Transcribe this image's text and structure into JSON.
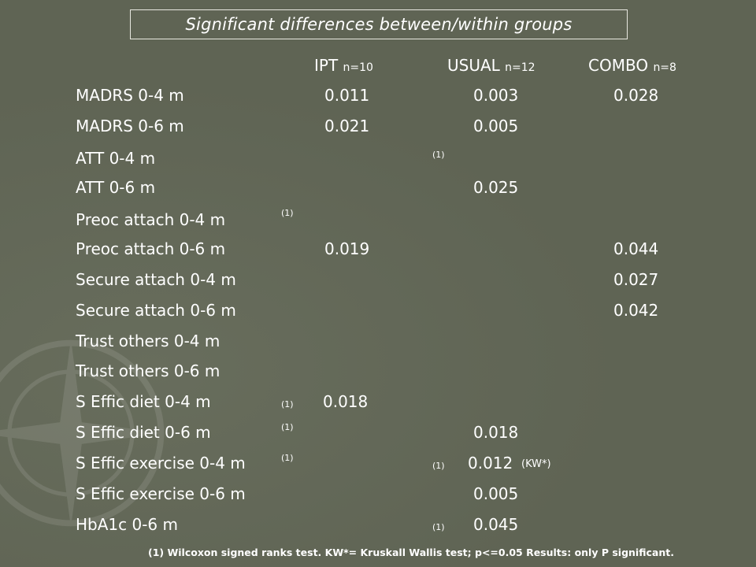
{
  "title": "Significant differences  between/within groups",
  "columns": [
    {
      "name": "IPT",
      "n": "n=10"
    },
    {
      "name": "USUAL",
      "n": "n=12"
    },
    {
      "name": "COMBO",
      "n": "n=8"
    }
  ],
  "rows": [
    {
      "label": "MADRS 0-4 m",
      "ipt": "0.011",
      "usual": "0.003",
      "combo": "0.028"
    },
    {
      "label": "MADRS 0-6 m",
      "ipt": "0.021",
      "usual": "0.005",
      "combo": ""
    },
    {
      "label": "ATT 0-4 m",
      "ipt": "",
      "usual": "",
      "combo": "",
      "usual_note": "(1)"
    },
    {
      "label": "ATT 0-6 m",
      "ipt": "",
      "usual": "0.025",
      "combo": ""
    },
    {
      "label": "Preoc attach 0-4 m",
      "ipt": "",
      "usual": "",
      "combo": "",
      "ipt_note": "(1)"
    },
    {
      "label": "Preoc attach 0-6 m",
      "ipt": "0.019",
      "usual": "",
      "combo": "0.044"
    },
    {
      "label": "Secure attach 0-4 m",
      "ipt": "",
      "usual": "",
      "combo": "0.027"
    },
    {
      "label": "Secure attach 0-6 m",
      "ipt": "",
      "usual": "",
      "combo": "0.042"
    },
    {
      "label": "Trust others 0-4 m",
      "ipt": "",
      "usual": "",
      "combo": ""
    },
    {
      "label": "Trust others 0-6 m",
      "ipt": "",
      "usual": "",
      "combo": ""
    },
    {
      "label": "S Effic diet 0-4 m",
      "ipt": "0.018",
      "usual": "",
      "combo": "",
      "ipt_note": "(1)"
    },
    {
      "label": "S Effic diet 0-6 m",
      "ipt": "",
      "usual": "0.018",
      "combo": "",
      "ipt_note": "(1)"
    },
    {
      "label": "S Effic exercise 0-4 m",
      "ipt": "",
      "usual": "0.012",
      "combo": "",
      "ipt_note": "(1)",
      "usual_note": "(1)",
      "usual_suffix": "(KW*)"
    },
    {
      "label": "S Effic exercise 0-6 m",
      "ipt": "",
      "usual": "0.005",
      "combo": ""
    },
    {
      "label": "HbA1c 0-6 m",
      "ipt": "",
      "usual": "0.045",
      "combo": "",
      "usual_note": "(1)"
    }
  ],
  "footnote": "(1) Wilcoxon signed ranks test.  KW*= Kruskall Wallis test; p<=0.05 Results: only P significant.",
  "colors": {
    "background": "#5f6454",
    "text": "#ffffff",
    "border": "#e8e8e0"
  }
}
